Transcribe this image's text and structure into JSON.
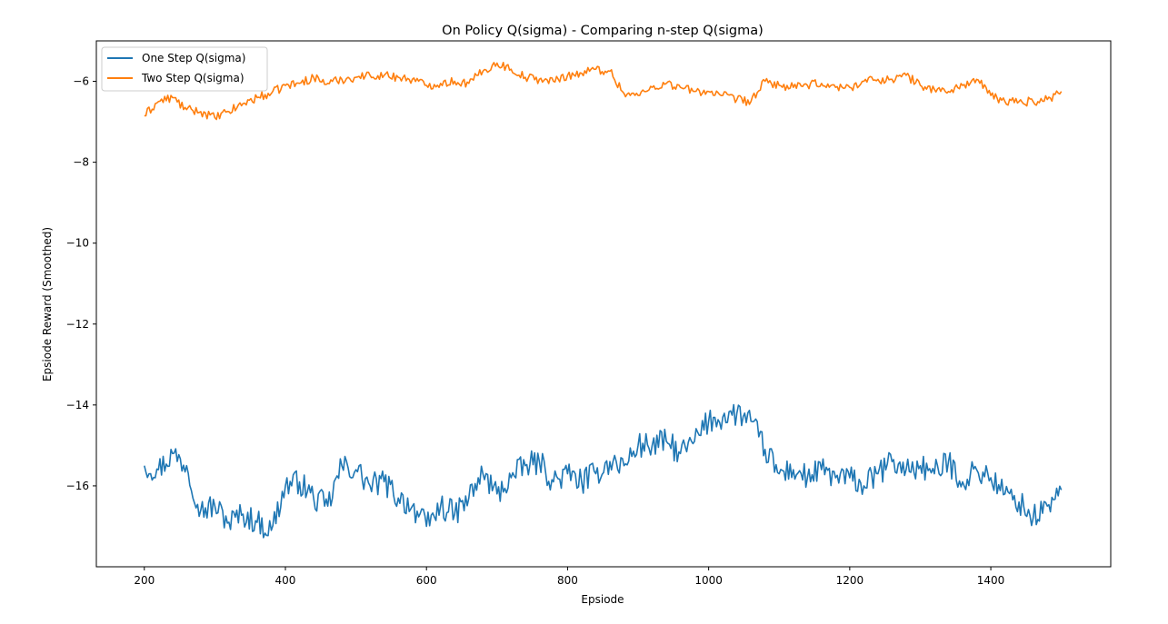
{
  "chart_data": {
    "type": "line",
    "title": "On Policy Q(sigma) - Comparing n-step Q(sigma)",
    "xlabel": "Epsiode",
    "ylabel": "Epsiode Reward (Smoothed)",
    "xlim": [
      132,
      1570
    ],
    "ylim": [
      -18.0,
      -5.0
    ],
    "xticks": [
      200,
      400,
      600,
      800,
      1000,
      1200,
      1400
    ],
    "yticks": [
      -6,
      -8,
      -10,
      -12,
      -14,
      -16
    ],
    "grid": false,
    "legend_position": "top-left",
    "x_points": [
      200,
      220,
      240,
      260,
      280,
      300,
      320,
      340,
      360,
      380,
      400,
      420,
      440,
      460,
      480,
      500,
      520,
      540,
      560,
      580,
      600,
      620,
      640,
      660,
      680,
      700,
      720,
      740,
      760,
      780,
      800,
      820,
      840,
      860,
      880,
      900,
      920,
      940,
      960,
      980,
      1000,
      1020,
      1040,
      1060,
      1080,
      1100,
      1120,
      1140,
      1160,
      1180,
      1200,
      1220,
      1240,
      1260,
      1280,
      1300,
      1320,
      1340,
      1360,
      1380,
      1400,
      1420,
      1440,
      1460,
      1480,
      1500
    ],
    "series": [
      {
        "name": "One Step Q(sigma)",
        "color": "#1f77b4",
        "values": [
          -15.5,
          -15.6,
          -15.2,
          -15.5,
          -16.6,
          -16.5,
          -16.9,
          -16.7,
          -16.9,
          -17.1,
          -16.0,
          -15.9,
          -16.3,
          -16.5,
          -15.5,
          -15.6,
          -16.0,
          -15.9,
          -16.3,
          -16.5,
          -17.0,
          -16.5,
          -16.7,
          -16.3,
          -15.7,
          -16.2,
          -15.8,
          -15.5,
          -15.4,
          -15.9,
          -15.7,
          -15.9,
          -15.7,
          -15.4,
          -15.5,
          -15.0,
          -15.0,
          -14.9,
          -15.2,
          -14.9,
          -14.4,
          -14.3,
          -14.2,
          -14.4,
          -15.1,
          -15.7,
          -15.6,
          -15.8,
          -15.6,
          -15.8,
          -15.8,
          -16.0,
          -15.7,
          -15.4,
          -15.6,
          -15.5,
          -15.7,
          -15.4,
          -15.9,
          -15.6,
          -15.8,
          -16.2,
          -16.4,
          -16.8,
          -16.5,
          -16.1
        ]
      },
      {
        "name": "Two Step Q(sigma)",
        "color": "#ff7f0e",
        "values": [
          -6.85,
          -6.5,
          -6.4,
          -6.7,
          -6.75,
          -6.9,
          -6.75,
          -6.55,
          -6.4,
          -6.3,
          -6.1,
          -6.05,
          -5.9,
          -6.05,
          -5.95,
          -5.9,
          -5.85,
          -5.85,
          -5.9,
          -5.95,
          -6.1,
          -6.05,
          -6.0,
          -6.05,
          -5.75,
          -5.55,
          -5.7,
          -5.9,
          -5.95,
          -6.0,
          -5.85,
          -5.8,
          -5.7,
          -5.75,
          -6.3,
          -6.35,
          -6.15,
          -6.05,
          -6.15,
          -6.25,
          -6.25,
          -6.35,
          -6.45,
          -6.5,
          -6.0,
          -6.1,
          -6.15,
          -6.1,
          -6.05,
          -6.15,
          -6.15,
          -6.0,
          -5.95,
          -5.95,
          -5.85,
          -6.1,
          -6.2,
          -6.25,
          -6.1,
          -5.95,
          -6.35,
          -6.5,
          -6.5,
          -6.5,
          -6.45,
          -6.25
        ]
      }
    ]
  }
}
